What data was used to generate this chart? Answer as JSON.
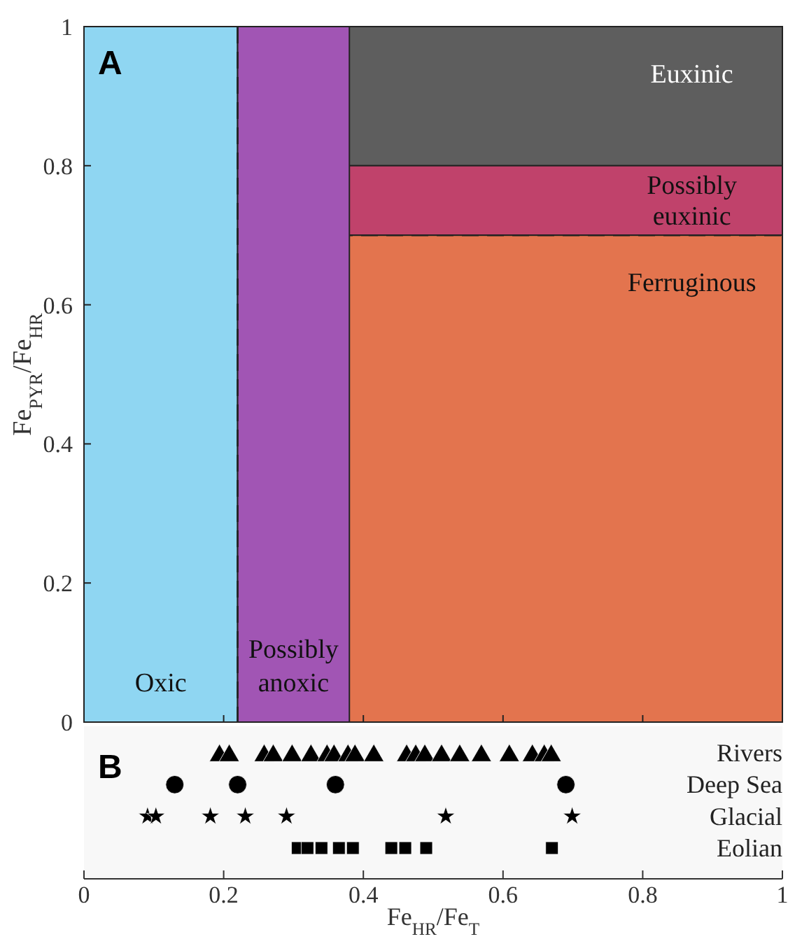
{
  "chart_data": [
    {
      "type": "scatter",
      "ylabel": "Fe$_{PYR}$/Fe$_{HR}$",
      "annotations": [
        "A"
      ],
      "xlim": [
        0,
        1
      ],
      "ylim": [
        0,
        1
      ],
      "xticks": [
        {
          "value": 0,
          "label": null
        },
        {
          "value": 0.2,
          "label": null
        },
        {
          "value": 0.4,
          "label": null
        },
        {
          "value": 0.6,
          "label": null
        },
        {
          "value": 0.8,
          "label": null
        },
        {
          "value": 1,
          "label": null
        }
      ],
      "yticks": [
        0,
        0.2,
        0.4,
        0.6,
        0.8,
        1
      ],
      "tick_labels": "y",
      "bands": [
        {
          "axis": "y",
          "from": 0.8,
          "to": 1,
          "label": "Euxinic",
          "color": "#5e5e5e"
        },
        {
          "axis": "y",
          "from": 0.7,
          "to": 0.8,
          "label": "Possibly euxinic",
          "color": "#c0426b"
        },
        {
          "axis": "y",
          "from": 0,
          "to": 0.7,
          "label": "Ferruginous",
          "color": "#e3744e"
        },
        {
          "axis": "x",
          "from": 0,
          "to": 0.22,
          "label": "Oxic",
          "color": "#8fd6f2"
        },
        {
          "axis": "x",
          "from": 0.22,
          "to": 0.38,
          "label": "Possibly anoxic",
          "color": "#a155b4"
        }
      ],
      "ref_lines": [
        {
          "axis": "y",
          "value": 0.7,
          "line_style": "dashed"
        },
        {
          "axis": "x",
          "value": 0.22,
          "line_style": "dashed"
        }
      ]
    },
    {
      "type": "scatter",
      "orientation": "horizontal",
      "xlabel": "Fe$_{HR}$/Fe$_{T}$",
      "annotations": [
        "B"
      ],
      "categories": [
        "Rivers",
        "Deep Sea",
        "Glacial",
        "Eolian"
      ],
      "xlim": [
        0,
        1
      ],
      "xticks": [
        0,
        0.2,
        0.4,
        0.6,
        0.8,
        1
      ],
      "series": [
        {
          "marker": "triangle",
          "color": "#000000",
          "x": [
            "Rivers",
            "Rivers",
            "Rivers",
            "Rivers",
            "Rivers",
            "Rivers",
            "Rivers",
            "Rivers",
            "Rivers",
            "Rivers",
            "Rivers",
            "Rivers",
            "Rivers",
            "Rivers",
            "Rivers",
            "Rivers",
            "Rivers",
            "Rivers",
            "Rivers",
            "Rivers",
            "Rivers"
          ],
          "values": [
            0.194,
            0.208,
            0.258,
            0.271,
            0.298,
            0.325,
            0.348,
            0.358,
            0.378,
            0.388,
            0.415,
            0.462,
            0.475,
            0.488,
            0.512,
            0.538,
            0.569,
            0.609,
            0.642,
            0.659,
            0.669
          ]
        },
        {
          "marker": "circle",
          "color": "#000000",
          "x": [
            "Deep Sea",
            "Deep Sea",
            "Deep Sea",
            "Deep Sea"
          ],
          "values": [
            0.13,
            0.22,
            0.36,
            0.69
          ]
        },
        {
          "marker": "star",
          "color": "#000000",
          "x": [
            "Glacial",
            "Glacial",
            "Glacial",
            "Glacial",
            "Glacial",
            "Glacial",
            "Glacial"
          ],
          "values": [
            0.091,
            0.103,
            0.181,
            0.231,
            0.29,
            0.518,
            0.699
          ]
        },
        {
          "marker": "square",
          "color": "#000000",
          "x": [
            "Eolian",
            "Eolian",
            "Eolian",
            "Eolian",
            "Eolian",
            "Eolian",
            "Eolian",
            "Eolian",
            "Eolian"
          ],
          "values": [
            0.306,
            0.32,
            0.34,
            0.365,
            0.385,
            0.44,
            0.46,
            0.49,
            0.67
          ]
        }
      ]
    }
  ]
}
